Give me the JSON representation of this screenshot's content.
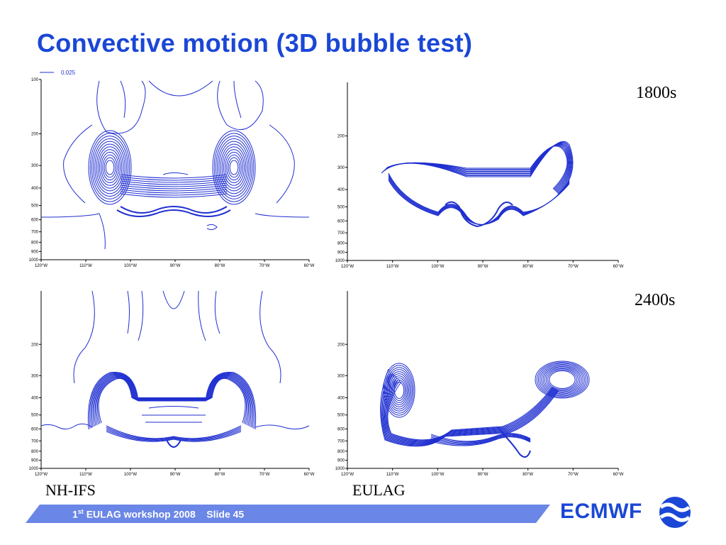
{
  "title": "Convective motion (3D bubble test)",
  "legend_label": "0.025",
  "y_ticks": [
    "100",
    "200",
    "300",
    "400",
    "500",
    "600",
    "700",
    "800",
    "900",
    "1000"
  ],
  "x_ticks": [
    "120°W",
    "110°W",
    "100°W",
    "90°W",
    "80°W",
    "70°W",
    "60°W"
  ],
  "time_labels": [
    "1800s",
    "2400s"
  ],
  "model_labels": [
    "NH-IFS",
    "EULAG"
  ],
  "footer": {
    "ordinal": "1",
    "ordinal_suffix": "st",
    "rest": " EULAG workshop 2008    Slide 45"
  },
  "logo": {
    "text": "ECMWF"
  },
  "colors": {
    "title": "#1b47d6",
    "contour": "#1f2fd0",
    "footer_bar": "#6a86e6",
    "logo": "#1b47d6"
  }
}
